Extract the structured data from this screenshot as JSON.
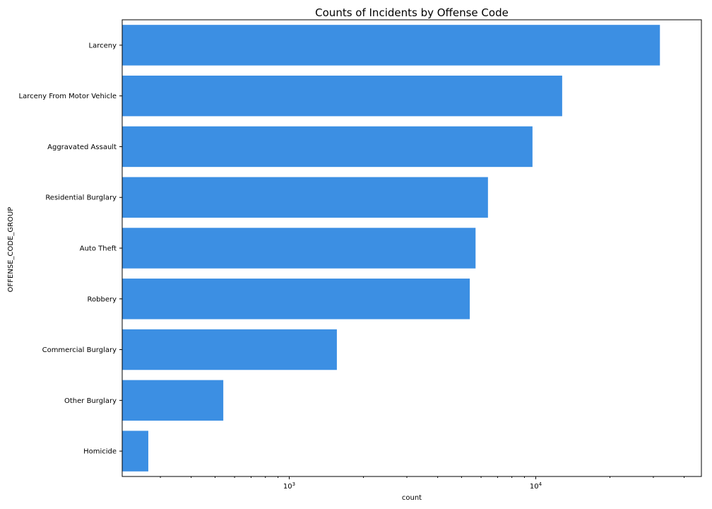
{
  "colors": {
    "bar": "#3c8fe3",
    "axis": "#000000",
    "background": "#ffffff"
  },
  "chart_data": {
    "type": "bar",
    "orientation": "horizontal",
    "title": "Counts of Incidents by Offense Code",
    "xlabel": "count",
    "ylabel": "OFFENSE_CODE_GROUP",
    "xscale": "log",
    "xlim": [
      210,
      47000
    ],
    "x_tick_labels": [
      {
        "value": 1000,
        "base": "10",
        "exp": "3"
      },
      {
        "value": 10000,
        "base": "10",
        "exp": "4"
      }
    ],
    "categories": [
      "Larceny",
      "Larceny From Motor Vehicle",
      "Aggravated Assault",
      "Residential Burglary",
      "Auto Theft",
      "Robbery",
      "Commercial Burglary",
      "Other Burglary",
      "Homicide"
    ],
    "values": [
      31900,
      12800,
      9700,
      6400,
      5700,
      5400,
      1560,
      540,
      268
    ],
    "grid": false,
    "legend": "none"
  }
}
